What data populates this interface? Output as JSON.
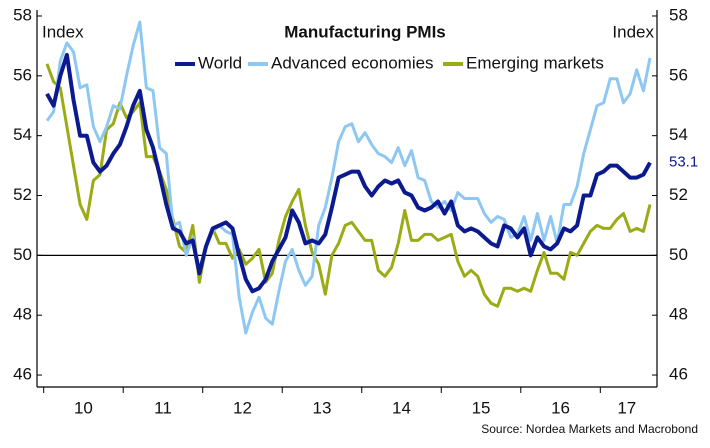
{
  "chart_data": {
    "type": "line",
    "title": "Manufacturing PMIs",
    "y_label": "Index",
    "y2_label": "Index",
    "source": "Source: Nordea Markets and Macrobond",
    "categories": [
      null,
      null,
      null,
      null,
      null,
      null,
      "10",
      null,
      null,
      null,
      null,
      null,
      null,
      null,
      null,
      null,
      null,
      null,
      "11",
      null,
      null,
      null,
      null,
      null,
      null,
      null,
      null,
      null,
      null,
      null,
      "12",
      null,
      null,
      null,
      null,
      null,
      null,
      null,
      null,
      null,
      null,
      null,
      "13",
      null,
      null,
      null,
      null,
      null,
      null,
      null,
      null,
      null,
      null,
      null,
      "14",
      null,
      null,
      null,
      null,
      null,
      null,
      null,
      null,
      null,
      null,
      null,
      "15",
      null,
      null,
      null,
      null,
      null,
      null,
      null,
      null,
      null,
      null,
      null,
      "16",
      null,
      null,
      null,
      null,
      null,
      null,
      null,
      null,
      null,
      "17",
      null,
      null,
      null
    ],
    "series": [
      {
        "name": "World",
        "color": "#0b1a8f",
        "width": 4,
        "values": [
          55.4,
          55.0,
          56.0,
          56.7,
          55.2,
          54.0,
          54.0,
          53.1,
          52.8,
          53.0,
          53.4,
          53.7,
          54.3,
          55.0,
          55.5,
          54.2,
          53.6,
          52.7,
          51.7,
          50.9,
          50.8,
          50.4,
          50.5,
          49.4,
          50.3,
          50.9,
          51.0,
          51.1,
          50.9,
          50.0,
          49.2,
          48.8,
          48.9,
          49.2,
          49.8,
          50.2,
          50.6,
          51.5,
          51.1,
          50.4,
          50.5,
          50.4,
          50.7,
          51.6,
          52.6,
          52.7,
          52.8,
          52.8,
          52.3,
          52.0,
          52.3,
          52.5,
          52.4,
          52.5,
          52.1,
          52.0,
          51.6,
          51.5,
          51.6,
          51.8,
          51.4,
          51.8,
          51.0,
          50.8,
          50.9,
          50.8,
          50.6,
          50.4,
          50.3,
          51.0,
          50.9,
          50.6,
          50.9,
          50.0,
          50.6,
          50.3,
          50.2,
          50.4,
          50.9,
          50.8,
          51.0,
          52.0,
          52.0,
          52.7,
          52.8,
          53.0,
          53.0,
          52.8,
          52.6,
          52.6,
          52.7,
          53.1
        ]
      },
      {
        "name": "Advanced economies",
        "color": "#8ec8f2",
        "width": 3,
        "values": [
          54.5,
          54.8,
          56.5,
          57.1,
          56.8,
          55.6,
          55.7,
          54.3,
          53.8,
          54.3,
          55.0,
          54.9,
          56.0,
          57.0,
          57.8,
          55.6,
          55.5,
          53.6,
          53.4,
          51.0,
          51.1,
          50.0,
          50.6,
          49.5,
          50.3,
          50.8,
          51.0,
          50.8,
          50.7,
          48.6,
          47.4,
          48.1,
          48.6,
          47.9,
          47.7,
          48.8,
          49.8,
          50.2,
          49.5,
          49.0,
          49.3,
          51.0,
          51.6,
          52.6,
          53.8,
          54.3,
          54.4,
          53.8,
          54.1,
          53.7,
          53.4,
          53.3,
          53.1,
          53.6,
          53.0,
          53.5,
          52.6,
          52.5,
          51.8,
          51.6,
          51.8,
          51.5,
          52.1,
          51.9,
          51.9,
          51.9,
          51.4,
          51.1,
          51.3,
          51.2,
          50.6,
          50.7,
          51.3,
          50.5,
          51.4,
          50.5,
          51.3,
          50.4,
          51.7,
          51.7,
          52.3,
          53.4,
          54.2,
          55.0,
          55.1,
          55.9,
          55.9,
          55.1,
          55.4,
          56.2,
          55.5,
          56.6
        ]
      },
      {
        "name": "Emerging markets",
        "color": "#9bab14",
        "width": 3,
        "values": [
          56.4,
          55.8,
          55.6,
          54.3,
          53.0,
          51.7,
          51.2,
          52.5,
          52.7,
          54.2,
          54.4,
          55.1,
          54.6,
          54.8,
          55.1,
          53.3,
          53.3,
          52.8,
          52.2,
          51.2,
          50.3,
          50.1,
          51.0,
          49.1,
          50.3,
          50.9,
          50.4,
          50.4,
          49.9,
          50.2,
          49.7,
          49.9,
          50.2,
          49.1,
          49.4,
          50.5,
          51.3,
          51.8,
          52.2,
          51.0,
          50.1,
          49.7,
          48.7,
          50.0,
          50.4,
          51.0,
          51.1,
          50.8,
          50.5,
          50.5,
          49.5,
          49.3,
          49.6,
          50.4,
          51.5,
          50.5,
          50.5,
          50.7,
          50.7,
          50.5,
          50.6,
          50.7,
          49.8,
          49.3,
          49.5,
          49.3,
          48.7,
          48.4,
          48.3,
          48.9,
          48.9,
          48.8,
          48.9,
          48.8,
          49.5,
          50.1,
          49.4,
          49.4,
          49.2,
          50.1,
          50.0,
          50.4,
          50.8,
          51.0,
          50.9,
          50.9,
          51.2,
          51.4,
          50.8,
          50.9,
          50.8,
          51.7
        ]
      }
    ],
    "ylim": [
      45.6,
      58.2
    ],
    "yticks": [
      46,
      48,
      50,
      52,
      54,
      56,
      58
    ],
    "y2lim": [
      45.6,
      58.2
    ],
    "y2ticks": [
      46,
      48,
      50,
      52,
      54,
      56,
      58
    ],
    "reference_line": 50,
    "annotations": [
      {
        "label": "53.1",
        "value": 53.1
      }
    ],
    "legend": "top"
  }
}
